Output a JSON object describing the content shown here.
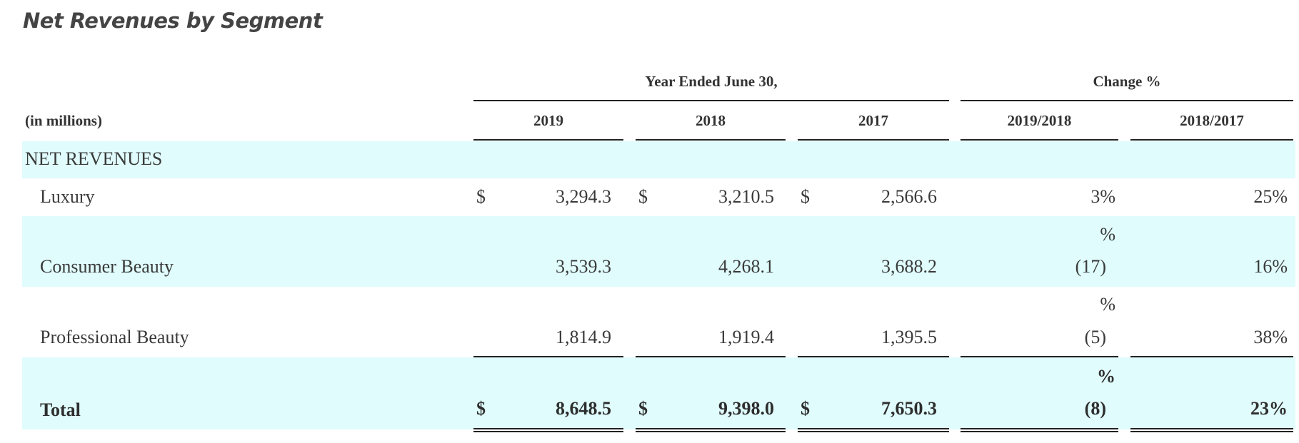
{
  "title": "Net Revenues by Segment",
  "header": {
    "group_years": "Year Ended June 30,",
    "group_change": "Change %",
    "units": "(in millions)",
    "columns": [
      "2019",
      "2018",
      "2017",
      "2019/2018",
      "2018/2017"
    ]
  },
  "section_label": "NET REVENUES",
  "currency_symbol": "$",
  "rows": [
    {
      "label": "Luxury",
      "v2019": "3,294.3",
      "v2018": "3,210.5",
      "v2017": "2,566.6",
      "pct_sym": "",
      "ch1": "3%",
      "ch2": "25%"
    },
    {
      "label": "Consumer Beauty",
      "v2019": "3,539.3",
      "v2018": "4,268.1",
      "v2017": "3,688.2",
      "pct_sym": "%",
      "ch1": "(17)",
      "ch2": "16%"
    },
    {
      "label": "Professional Beauty",
      "v2019": "1,814.9",
      "v2018": "1,919.4",
      "v2017": "1,395.5",
      "pct_sym": "%",
      "ch1": "(5)",
      "ch2": "38%"
    }
  ],
  "total": {
    "label": "Total",
    "v2019": "8,648.5",
    "v2018": "9,398.0",
    "v2017": "7,650.3",
    "pct_sym": "%",
    "ch1": "(8)",
    "ch2": "23%"
  },
  "colors": {
    "band": "#e0fcfc",
    "text": "#3a3a3a",
    "rule": "#222222"
  }
}
